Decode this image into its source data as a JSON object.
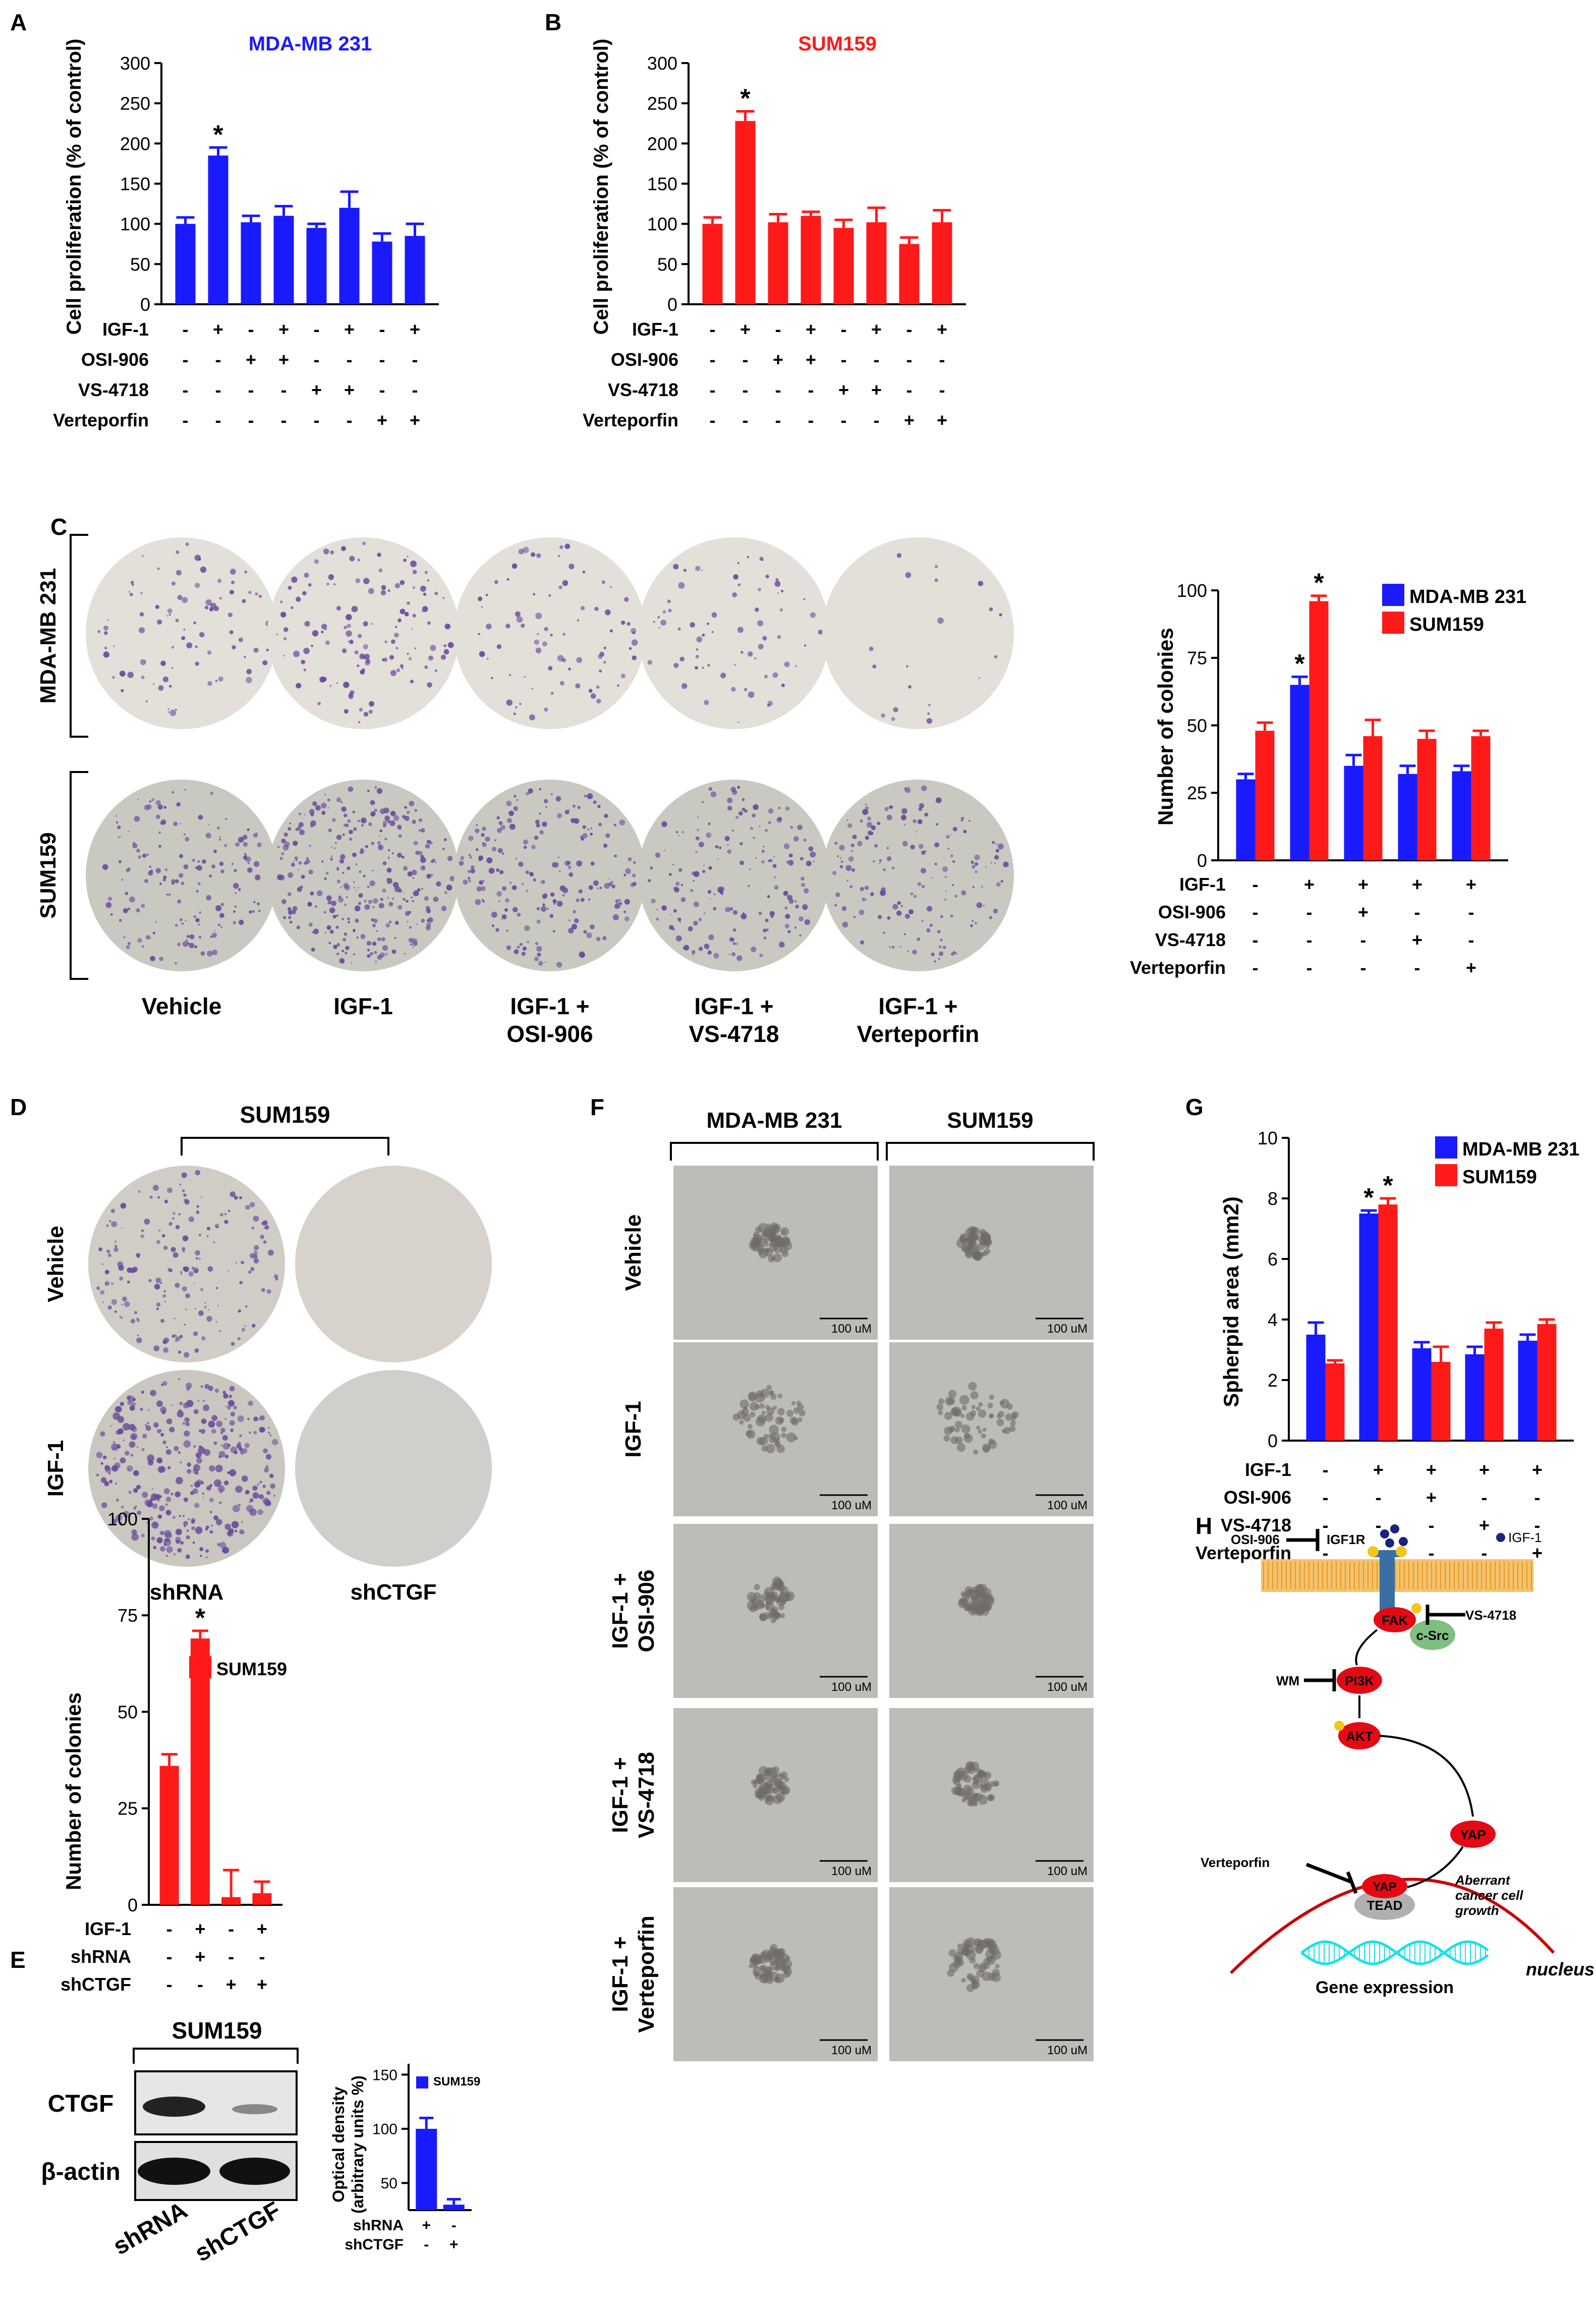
{
  "colors": {
    "blue": "#1a1aff",
    "red": "#ff1a1a",
    "dish_light": "#d9d5d0",
    "dish_dark": "#bfbcb6",
    "colony": "#6a4a9a",
    "micro_bg": "#bdbdb8",
    "spheroid": "#6f6a66"
  },
  "panels": [
    "A",
    "B",
    "C",
    "D",
    "E",
    "F",
    "G",
    "H"
  ],
  "treat_labels": {
    "igf1": "IGF-1",
    "osi": "OSI-906",
    "vs": "VS-4718",
    "vert": "Verteporfin",
    "shrna": "shRNA",
    "shctgf": "shCTGF"
  },
  "chart_data": [
    {
      "id": "A",
      "type": "bar",
      "title": "MDA-MB 231",
      "ylabel": "Cell proliferation (% of control)",
      "ylim": [
        0,
        300
      ],
      "yticks": [
        0,
        50,
        100,
        150,
        200,
        250,
        300
      ],
      "series": [
        {
          "values": [
            100,
            185,
            102,
            110,
            95,
            120,
            78,
            85
          ],
          "errors": [
            8,
            10,
            8,
            12,
            5,
            20,
            10,
            15
          ]
        }
      ],
      "stars": [
        1
      ],
      "treatments": [
        [
          "-",
          "+",
          "-",
          "+",
          "-",
          "+",
          "-",
          "+"
        ],
        [
          "-",
          "-",
          "+",
          "+",
          "-",
          "-",
          "-",
          "-"
        ],
        [
          "-",
          "-",
          "-",
          "-",
          "+",
          "+",
          "-",
          "-"
        ],
        [
          "-",
          "-",
          "-",
          "-",
          "-",
          "-",
          "+",
          "+"
        ]
      ]
    },
    {
      "id": "B",
      "type": "bar",
      "title": "SUM159",
      "ylabel": "Cell proliferation (% of control)",
      "ylim": [
        0,
        300
      ],
      "yticks": [
        0,
        50,
        100,
        150,
        200,
        250,
        300
      ],
      "series": [
        {
          "values": [
            100,
            228,
            102,
            110,
            95,
            102,
            75,
            102
          ],
          "errors": [
            8,
            12,
            10,
            5,
            10,
            18,
            8,
            15
          ]
        }
      ],
      "stars": [
        1
      ],
      "treatments": [
        [
          "-",
          "+",
          "-",
          "+",
          "-",
          "+",
          "-",
          "+"
        ],
        [
          "-",
          "-",
          "+",
          "+",
          "-",
          "-",
          "-",
          "-"
        ],
        [
          "-",
          "-",
          "-",
          "-",
          "+",
          "+",
          "-",
          "-"
        ],
        [
          "-",
          "-",
          "-",
          "-",
          "-",
          "-",
          "+",
          "+"
        ]
      ]
    },
    {
      "id": "C",
      "type": "bar",
      "ylabel": "Number of colonies",
      "ylim": [
        0,
        100
      ],
      "yticks": [
        0,
        25,
        50,
        75,
        100
      ],
      "legend": [
        "MDA-MB 231",
        "SUM159"
      ],
      "series": [
        {
          "name": "MDA-MB 231",
          "values": [
            30,
            65,
            35,
            32,
            33
          ],
          "errors": [
            2,
            3,
            4,
            3,
            2
          ]
        },
        {
          "name": "SUM159",
          "values": [
            48,
            96,
            46,
            45,
            46
          ],
          "errors": [
            3,
            2,
            6,
            3,
            2
          ]
        }
      ],
      "stars": [
        [
          1,
          0
        ],
        [
          1,
          1
        ]
      ],
      "treatments": [
        [
          "-",
          "+",
          "+",
          "+",
          "+"
        ],
        [
          "-",
          "-",
          "+",
          "-",
          "-"
        ],
        [
          "-",
          "-",
          "-",
          "+",
          "-"
        ],
        [
          "-",
          "-",
          "-",
          "-",
          "+"
        ]
      ]
    },
    {
      "id": "D",
      "type": "bar",
      "ylabel": "Number of colonies",
      "ylim": [
        0,
        100
      ],
      "yticks": [
        0,
        25,
        50,
        75,
        100
      ],
      "legend": [
        "SUM159"
      ],
      "series": [
        {
          "name": "SUM159",
          "values": [
            36,
            69,
            2,
            3
          ],
          "errors": [
            3,
            2,
            7,
            3
          ]
        }
      ],
      "stars": [
        1
      ],
      "treatments": [
        [
          "-",
          "+",
          "-",
          "+"
        ],
        [
          "-",
          "+",
          "-",
          "-"
        ],
        [
          "-",
          "-",
          "+",
          "+"
        ]
      ]
    },
    {
      "id": "E",
      "type": "bar",
      "ylabel": "Optical density (arbitrary units %)",
      "ylim": [
        25,
        160
      ],
      "yticks": [
        50,
        100,
        150
      ],
      "legend": [
        "SUM159"
      ],
      "series": [
        {
          "name": "SUM159",
          "values": [
            100,
            30
          ],
          "errors": [
            10,
            5
          ]
        }
      ],
      "treatments": [
        [
          "+",
          "-"
        ],
        [
          "-",
          "+"
        ]
      ]
    },
    {
      "id": "G",
      "type": "bar",
      "ylabel": "Spherpid area (mm2)",
      "ylim": [
        0,
        10
      ],
      "yticks": [
        0,
        2,
        4,
        6,
        8,
        10
      ],
      "legend": [
        "MDA-MB 231",
        "SUM159"
      ],
      "series": [
        {
          "name": "MDA-MB 231",
          "values": [
            3.5,
            7.5,
            3.05,
            2.85,
            3.3
          ],
          "errors": [
            0.4,
            0.1,
            0.2,
            0.25,
            0.2
          ]
        },
        {
          "name": "SUM159",
          "values": [
            2.55,
            7.8,
            2.6,
            3.7,
            3.85
          ],
          "errors": [
            0.1,
            0.2,
            0.5,
            0.2,
            0.15
          ]
        }
      ],
      "stars": [
        [
          1,
          0
        ],
        [
          1,
          1
        ]
      ],
      "treatments": [
        [
          "-",
          "+",
          "+",
          "+",
          "+"
        ],
        [
          "-",
          "-",
          "+",
          "-",
          "-"
        ],
        [
          "-",
          "-",
          "-",
          "+",
          "-"
        ],
        [
          "-",
          "-",
          "-",
          "-",
          "+"
        ]
      ]
    }
  ],
  "panel_c": {
    "row_labels": [
      "MDA-MB 231",
      "SUM159"
    ],
    "col_labels": [
      [
        "Vehicle"
      ],
      [
        "IGF-1"
      ],
      [
        "IGF-1 +",
        "OSI-906"
      ],
      [
        "IGF-1 +",
        "VS-4718"
      ],
      [
        "IGF-1 +",
        "Verteporfin"
      ]
    ]
  },
  "panel_d": {
    "title": "SUM159",
    "row_labels": [
      "Vehicle",
      "IGF-1"
    ],
    "col_labels": [
      "shRNA",
      "shCTGF"
    ]
  },
  "panel_e": {
    "title": "SUM159",
    "bands": [
      "CTGF",
      "β-actin"
    ],
    "lanes": [
      "shRNA",
      "shCTGF"
    ]
  },
  "panel_f": {
    "col_labels": [
      "MDA-MB 231",
      "SUM159"
    ],
    "row_labels": [
      [
        "Vehicle"
      ],
      [
        "IGF-1"
      ],
      [
        "IGF-1 +",
        "OSI-906"
      ],
      [
        "IGF-1 +",
        "VS-4718"
      ],
      [
        "IGF-1 +",
        "Verteporfin"
      ]
    ],
    "scale_label": "100 uM"
  },
  "panel_h": {
    "igf1": "IGF-1",
    "igf1r": "IGF1R",
    "osi": "OSI-906",
    "vs": "VS-4718",
    "fak": "FAK",
    "csrc": "c-Src",
    "wm": "WM",
    "pi3k": "PI3K",
    "akt": "AKT",
    "yap": "YAP",
    "tead": "TEAD",
    "verteporfin": "Verteporfin",
    "aberrant": [
      "Aberrant",
      "cancer cell",
      "growth"
    ],
    "nucleus": "nucleus",
    "gene": "Gene expression",
    "p": "P"
  }
}
